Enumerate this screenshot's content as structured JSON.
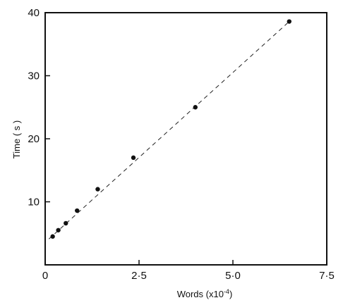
{
  "chart_data": {
    "type": "scatter",
    "title": "",
    "xlabel": "Words (x10",
    "xlabel_exponent": "-4",
    "xlabel_close": ")",
    "ylabel": "Time ( s )",
    "xlim": [
      0,
      7.5
    ],
    "ylim": [
      0,
      40
    ],
    "x_ticks": [
      0,
      2.5,
      5.0,
      7.5
    ],
    "x_tick_labels": [
      "0",
      "2·5",
      "5·0",
      "7·5"
    ],
    "y_ticks": [
      10,
      20,
      30,
      40
    ],
    "y_tick_labels": [
      "10",
      "20",
      "30",
      "40"
    ],
    "grid": false,
    "legend": "none",
    "series": [
      {
        "x": [
          0.2,
          0.35,
          0.55,
          0.85,
          1.4,
          2.35,
          4.0,
          6.5
        ],
        "y": [
          4.5,
          5.5,
          6.6,
          8.6,
          12.0,
          17.0,
          25.0,
          38.6
        ]
      }
    ],
    "trendline": {
      "style": "dashed",
      "x": [
        0.1,
        6.5
      ],
      "y": [
        4.1,
        38.6
      ]
    },
    "colors": {
      "marker": "#111111",
      "axis": "#111111",
      "line": "#222222"
    }
  }
}
